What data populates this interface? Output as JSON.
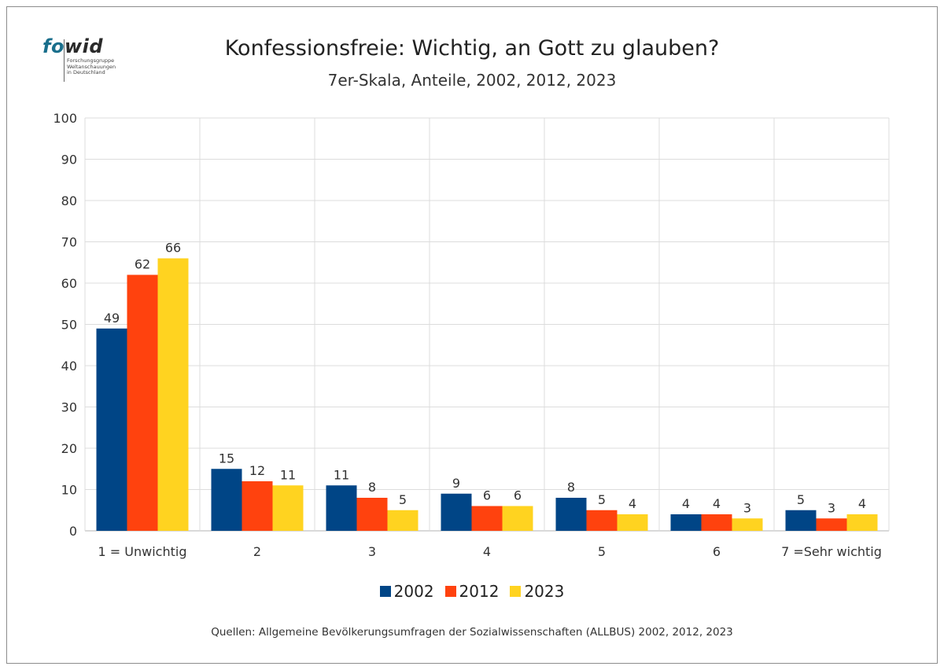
{
  "logo": {
    "prefix": "fo",
    "suffix": "wid",
    "subtitle": "Forschungsgruppe\nWeltanschauungen\nin Deutschland"
  },
  "chart_data": {
    "type": "bar",
    "title": "Konfessionsfreie: Wichtig, an Gott zu glauben?",
    "subtitle": "7er-Skala, Anteile, 2002, 2012, 2023",
    "categories": [
      "1 = Unwichtig",
      "2",
      "3",
      "4",
      "5",
      "6",
      "7 =Sehr wichtig"
    ],
    "series": [
      {
        "name": "2002",
        "color": "#004586",
        "values": [
          49,
          15,
          11,
          9,
          8,
          4,
          5
        ]
      },
      {
        "name": "2012",
        "color": "#ff420e",
        "values": [
          62,
          12,
          8,
          6,
          5,
          4,
          3
        ]
      },
      {
        "name": "2023",
        "color": "#ffd320",
        "values": [
          66,
          11,
          5,
          6,
          4,
          3,
          4
        ]
      }
    ],
    "ylim": [
      0,
      100
    ],
    "yticks": [
      0,
      10,
      20,
      30,
      40,
      50,
      60,
      70,
      80,
      90,
      100
    ],
    "grid": true,
    "legend_position": "bottom",
    "source": "Quellen: Allgemeine Bevölkerungsumfragen der Sozialwissenschaften (ALLBUS) 2002, 2012, 2023"
  }
}
